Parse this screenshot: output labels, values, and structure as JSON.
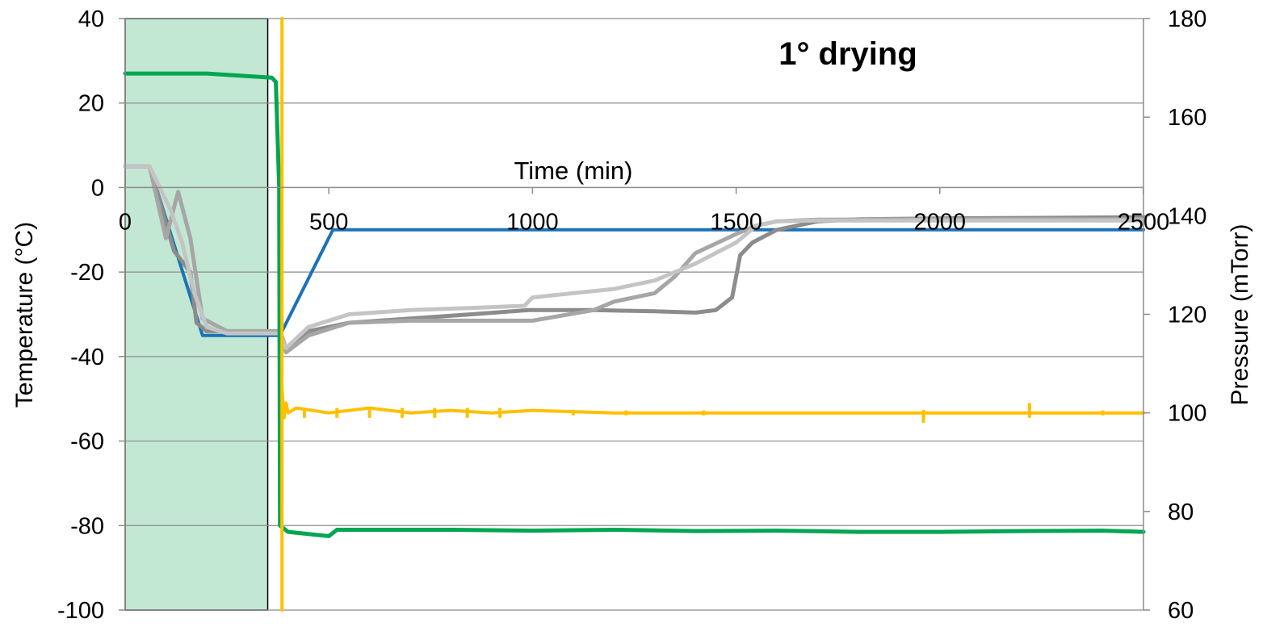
{
  "chart_data": {
    "type": "line",
    "annotation": "1°  drying",
    "xlabel": "Time (min)",
    "ylabel_left": "Temperature (°C)",
    "ylabel_right": "Pressure (mTorr)",
    "xlim": [
      0,
      2500
    ],
    "ylim_left": [
      -100,
      40
    ],
    "ylim_right": [
      60,
      180
    ],
    "x_ticks": [
      "0",
      "500",
      "1000",
      "1500",
      "2000",
      "2500"
    ],
    "y_left_ticks": [
      "40",
      "20",
      "0",
      "-20",
      "-40",
      "-60",
      "-80",
      "-100"
    ],
    "y_right_ticks": [
      "180",
      "160",
      "140",
      "120",
      "100",
      "80",
      "60"
    ],
    "grid": true,
    "highlight_region": {
      "x": [
        0,
        350
      ],
      "color": "#c2e8d3"
    },
    "colors": {
      "shelf": "#1a72b8",
      "product_a": "#8c8c8c",
      "product_b": "#a6a6a6",
      "product_c": "#c4c4c4",
      "condenser": "#00a651",
      "pressure": "#ffc000"
    },
    "series": [
      {
        "key": "shelf",
        "axis": "left",
        "x": [
          0,
          60,
          190,
          380,
          510,
          2500
        ],
        "y": [
          5,
          5,
          -35,
          -35,
          -10,
          -10
        ]
      },
      {
        "key": "product_a",
        "axis": "left",
        "x": [
          0,
          60,
          120,
          160,
          175,
          200,
          250,
          380,
          395,
          450,
          550,
          700,
          850,
          990,
          1150,
          1300,
          1400,
          1450,
          1490,
          1510,
          1540,
          1600,
          1700,
          1800,
          2000,
          2200,
          2500
        ],
        "y": [
          5,
          5,
          -15,
          -20,
          -32,
          -34,
          -34,
          -34,
          -38,
          -34,
          -32,
          -31,
          -30,
          -29,
          -29,
          -29.3,
          -29.6,
          -29,
          -26,
          -16,
          -13,
          -10,
          -8,
          -7.5,
          -7.3,
          -7.2,
          -7
        ]
      },
      {
        "key": "product_b",
        "axis": "left",
        "x": [
          0,
          60,
          100,
          130,
          160,
          190,
          250,
          380,
          395,
          450,
          550,
          700,
          850,
          1000,
          1150,
          1200,
          1300,
          1350,
          1400,
          1500,
          1550,
          1600,
          1700,
          2000,
          2500
        ],
        "y": [
          5,
          5,
          -12,
          -1,
          -12,
          -31,
          -34,
          -34,
          -39,
          -35,
          -32,
          -31.5,
          -31.5,
          -31.5,
          -29,
          -27,
          -25,
          -21,
          -15.5,
          -11,
          -9,
          -8,
          -7.6,
          -7.5,
          -7.5
        ]
      },
      {
        "key": "product_c",
        "axis": "left",
        "x": [
          0,
          60,
          110,
          140,
          170,
          200,
          250,
          380,
          395,
          450,
          550,
          700,
          850,
          980,
          1000,
          1100,
          1200,
          1300,
          1400,
          1500,
          1550,
          1600,
          1700,
          2000,
          2500
        ],
        "y": [
          5,
          5,
          -5,
          -13,
          -25,
          -33,
          -34.5,
          -34.5,
          -38,
          -33,
          -30,
          -29,
          -28.5,
          -28,
          -26,
          -25,
          -24,
          -22,
          -18,
          -13,
          -9,
          -8,
          -7.8,
          -7.8,
          -7.8
        ]
      },
      {
        "key": "condenser",
        "axis": "left",
        "x": [
          0,
          200,
          360,
          370,
          378,
          380,
          400,
          450,
          500,
          520,
          600,
          800,
          1000,
          1200,
          1400,
          1600,
          1800,
          2000,
          2200,
          2400,
          2500
        ],
        "y": [
          27,
          27,
          26,
          25,
          0,
          -80,
          -81.5,
          -82,
          -82.5,
          -81,
          -81,
          -81,
          -81.2,
          -81,
          -81.3,
          -81.2,
          -81.5,
          -81.5,
          -81.3,
          -81.2,
          -81.5
        ]
      },
      {
        "key": "pressure",
        "axis": "right",
        "x": [
          385,
          385,
          385,
          390,
          395,
          400,
          420,
          500,
          600,
          700,
          800,
          900,
          1000,
          1200,
          1400,
          1600,
          1800,
          2000,
          2200,
          2500
        ],
        "y": [
          60,
          180,
          105,
          99,
          102,
          100,
          101,
          100,
          101,
          100,
          100.5,
          100,
          100.5,
          100,
          100,
          100,
          100,
          100,
          100,
          100
        ],
        "spikes": [
          [
            440,
            101,
            99
          ],
          [
            520,
            101,
            99
          ],
          [
            600,
            101,
            99
          ],
          [
            680,
            101,
            99
          ],
          [
            760,
            101,
            99
          ],
          [
            840,
            101,
            99
          ],
          [
            920,
            101,
            99
          ],
          [
            1100,
            100.5,
            99.5
          ],
          [
            1230,
            100.5,
            99.5
          ],
          [
            1420,
            100.5,
            99.5
          ],
          [
            1960,
            100.6,
            98
          ],
          [
            2220,
            102,
            99
          ],
          [
            2400,
            100.5,
            99.5
          ]
        ]
      }
    ]
  }
}
